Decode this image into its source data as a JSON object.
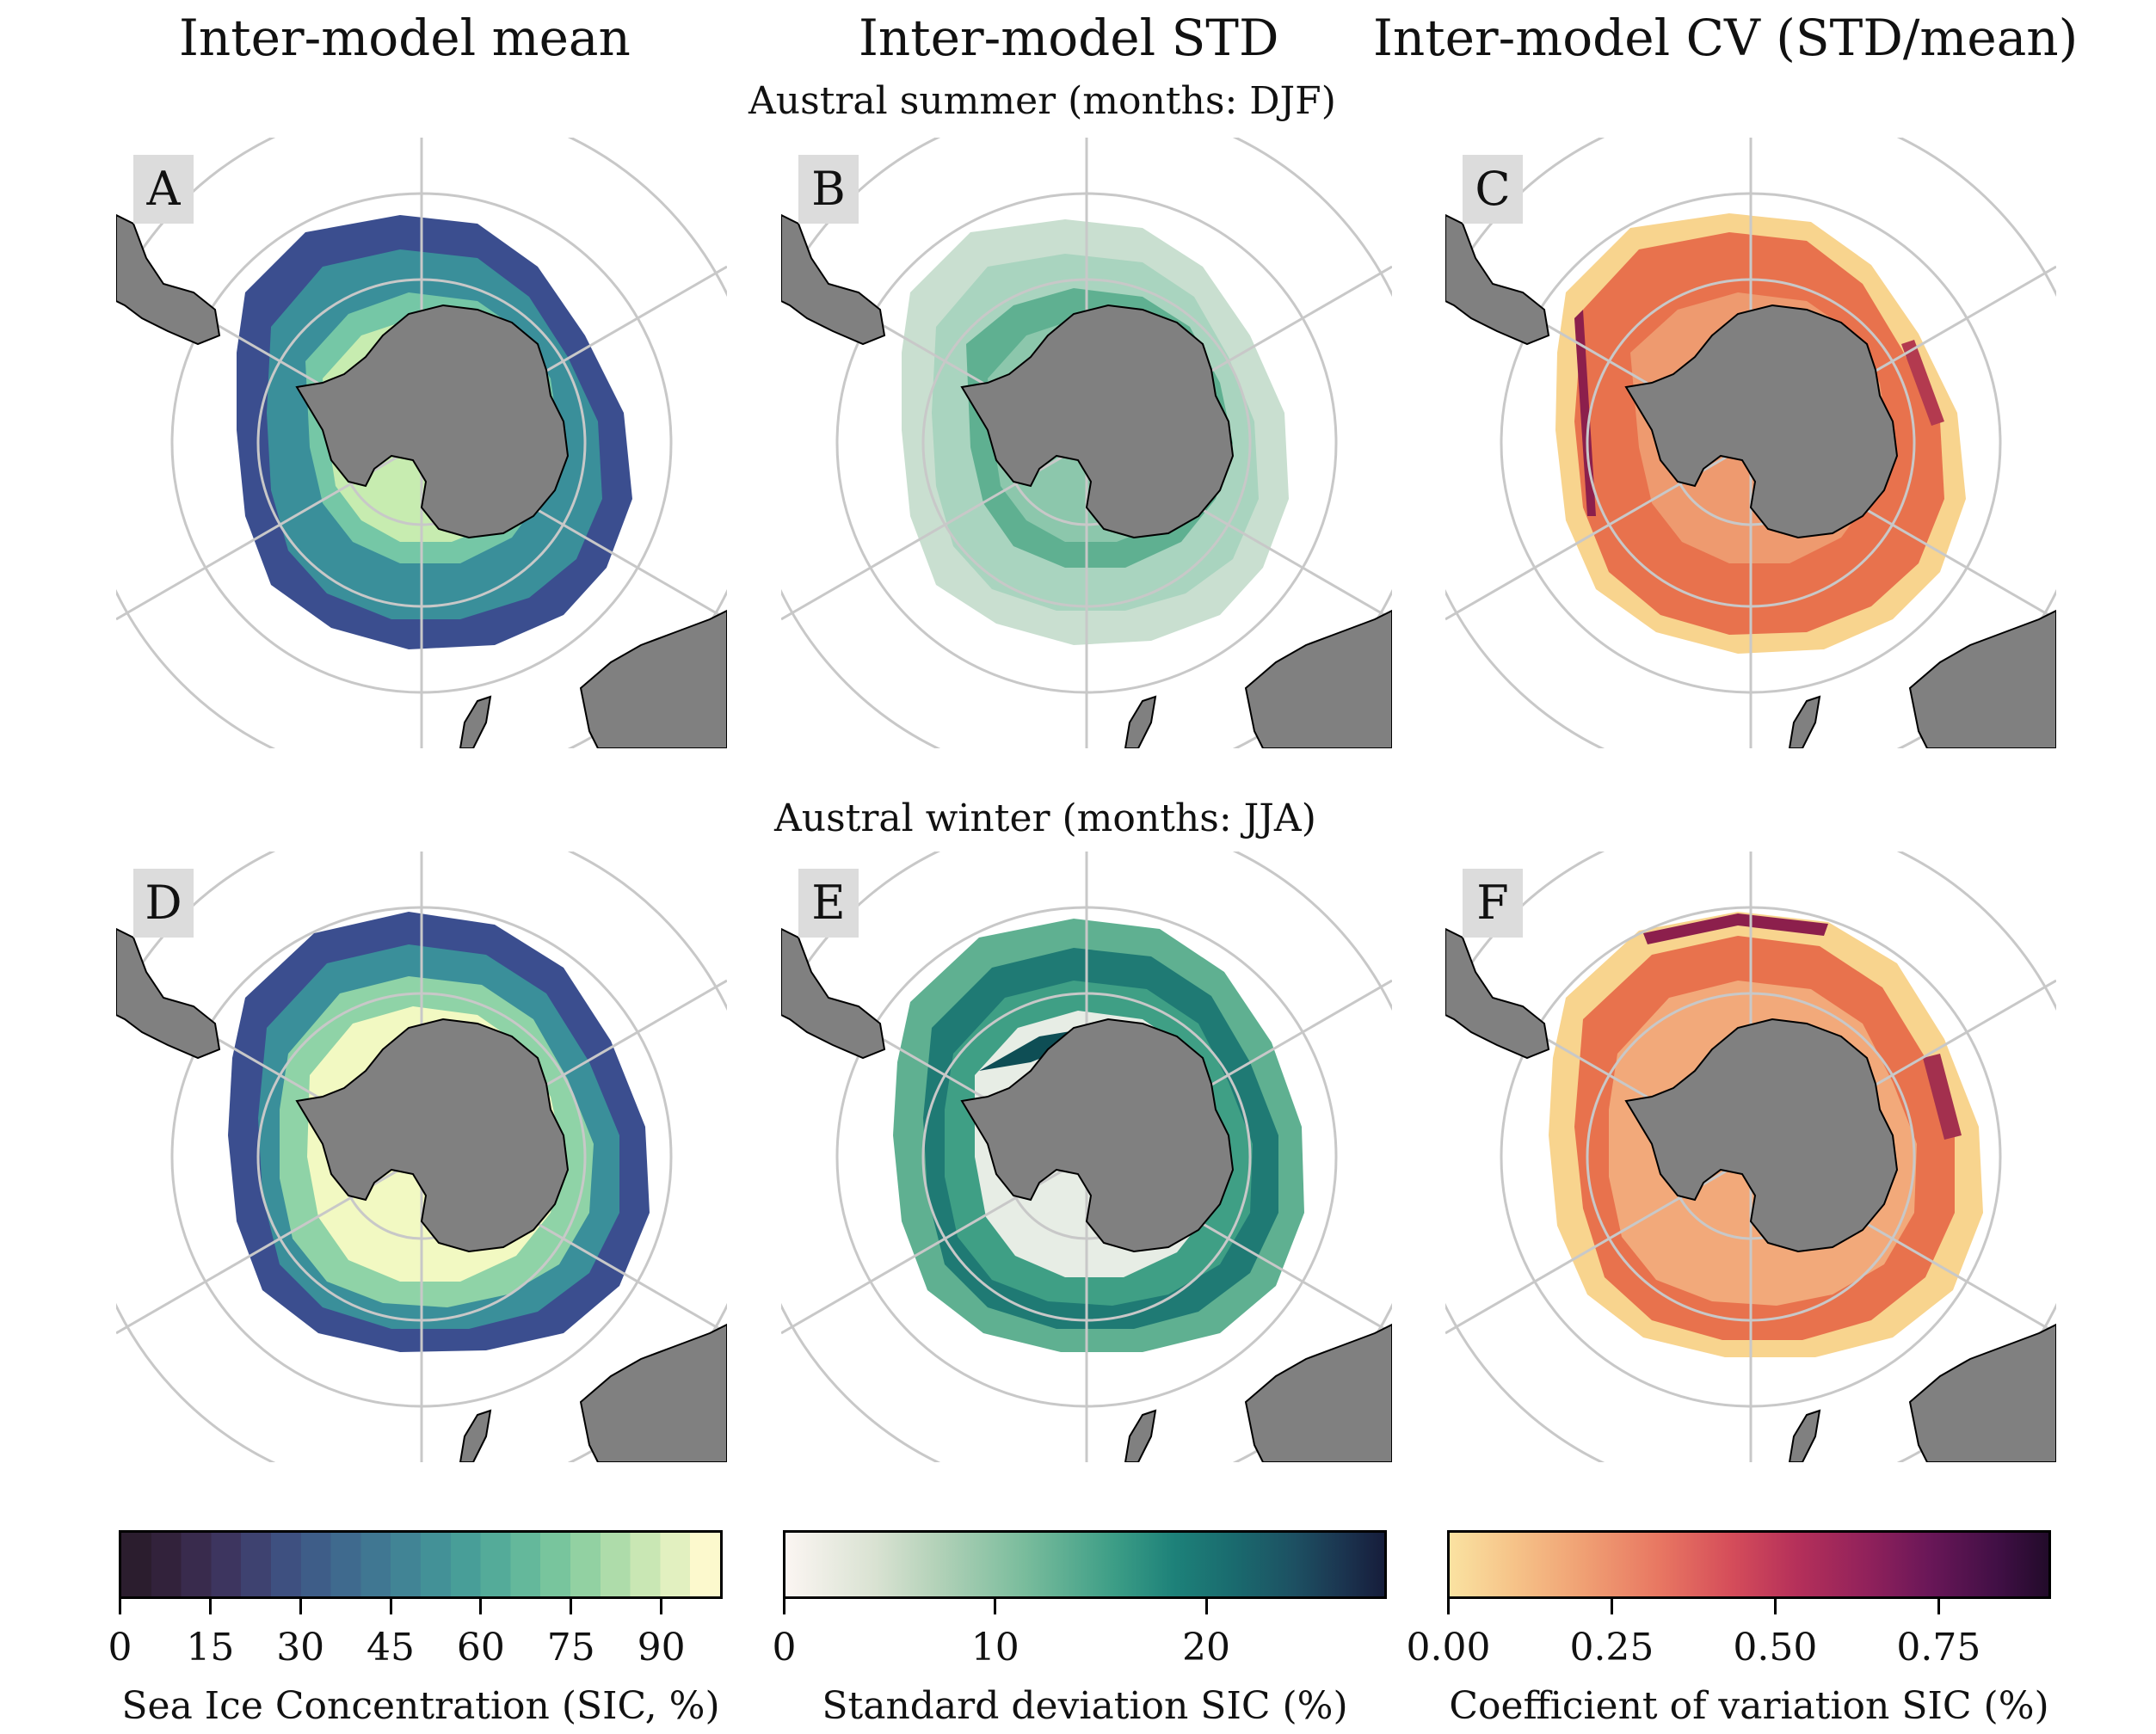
{
  "columns": {
    "mean_title": "Inter-model mean",
    "std_title": "Inter-model STD",
    "cv_title": "Inter-model CV (STD/mean)"
  },
  "rows": {
    "summer_title": "Austral summer (months: DJF)",
    "winter_title": "Austral winter (months: JJA)"
  },
  "panels": {
    "A": "A",
    "B": "B",
    "C": "C",
    "D": "D",
    "E": "E",
    "F": "F"
  },
  "colorbars": {
    "mean": {
      "label": "Sea Ice Concentration (SIC, %)",
      "ticks": [
        "0",
        "15",
        "30",
        "45",
        "60",
        "75",
        "90"
      ],
      "range": [
        0,
        100
      ],
      "colormap": "deep (dark purple to pale yellow, 20 discrete steps)"
    },
    "std": {
      "label": "Standard deviation SIC (%)",
      "ticks": [
        "0",
        "10",
        "20"
      ],
      "range": [
        0,
        28.5
      ],
      "colormap": "tempo (white to dark teal)"
    },
    "cv": {
      "label": "Coefficient of variation SIC (%)",
      "ticks": [
        "0.00",
        "0.25",
        "0.50",
        "0.75"
      ],
      "range": [
        0,
        0.92
      ],
      "colormap": "magma_r (pale yellow to dark purple)"
    }
  },
  "colors": {
    "land": "#808080",
    "graticule": "#c8c8c8",
    "mean_outer": "#3b4e8f",
    "mean_mid": "#3a8f9a",
    "mean_inner": "#d7f2b8",
    "std_low": "#f4f0ec",
    "std_mid": "#3f9f85",
    "std_high": "#0e4e55",
    "cv_low": "#f8d48e",
    "cv_mid": "#e8724d",
    "cv_high": "#8c1f4c"
  }
}
